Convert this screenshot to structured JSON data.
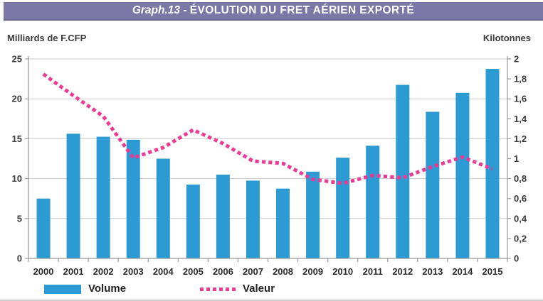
{
  "page": {
    "background": "#ffffff",
    "bottom_strip_color": "#cccccc"
  },
  "header": {
    "title_prefix": "Graph.13",
    "title_separator": " - ",
    "title_main": "ÉVOLUTION DU FRET AÉRIEN EXPORTÉ",
    "bar_color": "#7B77A7",
    "bar_border_color": "#615E8B",
    "text_color": "#ffffff"
  },
  "axes_units": {
    "left_label": "Milliards de F.CFP",
    "right_label": "Kilotonnes"
  },
  "legend": {
    "volume_label": "Volume",
    "valeur_label": "Valeur"
  },
  "chart_data": {
    "type": "bar+line dual-axis",
    "title": "Graph.13 - ÉVOLUTION DU FRET AÉRIEN EXPORTÉ",
    "categories": [
      "2000",
      "2001",
      "2002",
      "2003",
      "2004",
      "2005",
      "2006",
      "2007",
      "2008",
      "2009",
      "2010",
      "2011",
      "2012",
      "2013",
      "2014",
      "2015"
    ],
    "series": [
      {
        "name": "Volume",
        "type": "bar",
        "axis": "right",
        "unit": "Kilotonnes",
        "color": "#2D9BD3",
        "values": [
          0.6,
          1.25,
          1.22,
          1.19,
          1.0,
          0.74,
          0.84,
          0.78,
          0.7,
          0.87,
          1.01,
          1.13,
          1.74,
          1.47,
          1.66,
          1.9
        ]
      },
      {
        "name": "Valeur",
        "type": "dotted-line",
        "axis": "left",
        "unit": "Milliards de F.CFP",
        "color": "#EC3A95",
        "values": [
          23.1,
          20.4,
          17.8,
          12.6,
          13.9,
          16.1,
          14.4,
          12.2,
          11.9,
          9.9,
          9.4,
          10.4,
          10.1,
          11.5,
          12.7,
          11.2
        ]
      }
    ],
    "left_axis": {
      "label": "Milliards de F.CFP",
      "min": 0,
      "max": 25,
      "tick_step": 5,
      "ticks": [
        "25",
        "20",
        "15",
        "10",
        "5",
        "0"
      ]
    },
    "right_axis": {
      "label": "Kilotonnes",
      "min": 0,
      "max": 2,
      "tick_step": 0.2,
      "ticks": [
        "2",
        "1,8",
        "1,6",
        "1,4",
        "1,2",
        "1",
        "0,8",
        "0,6",
        "0,4",
        "0,2",
        "0"
      ]
    },
    "grid": true,
    "legend_position": "bottom"
  }
}
